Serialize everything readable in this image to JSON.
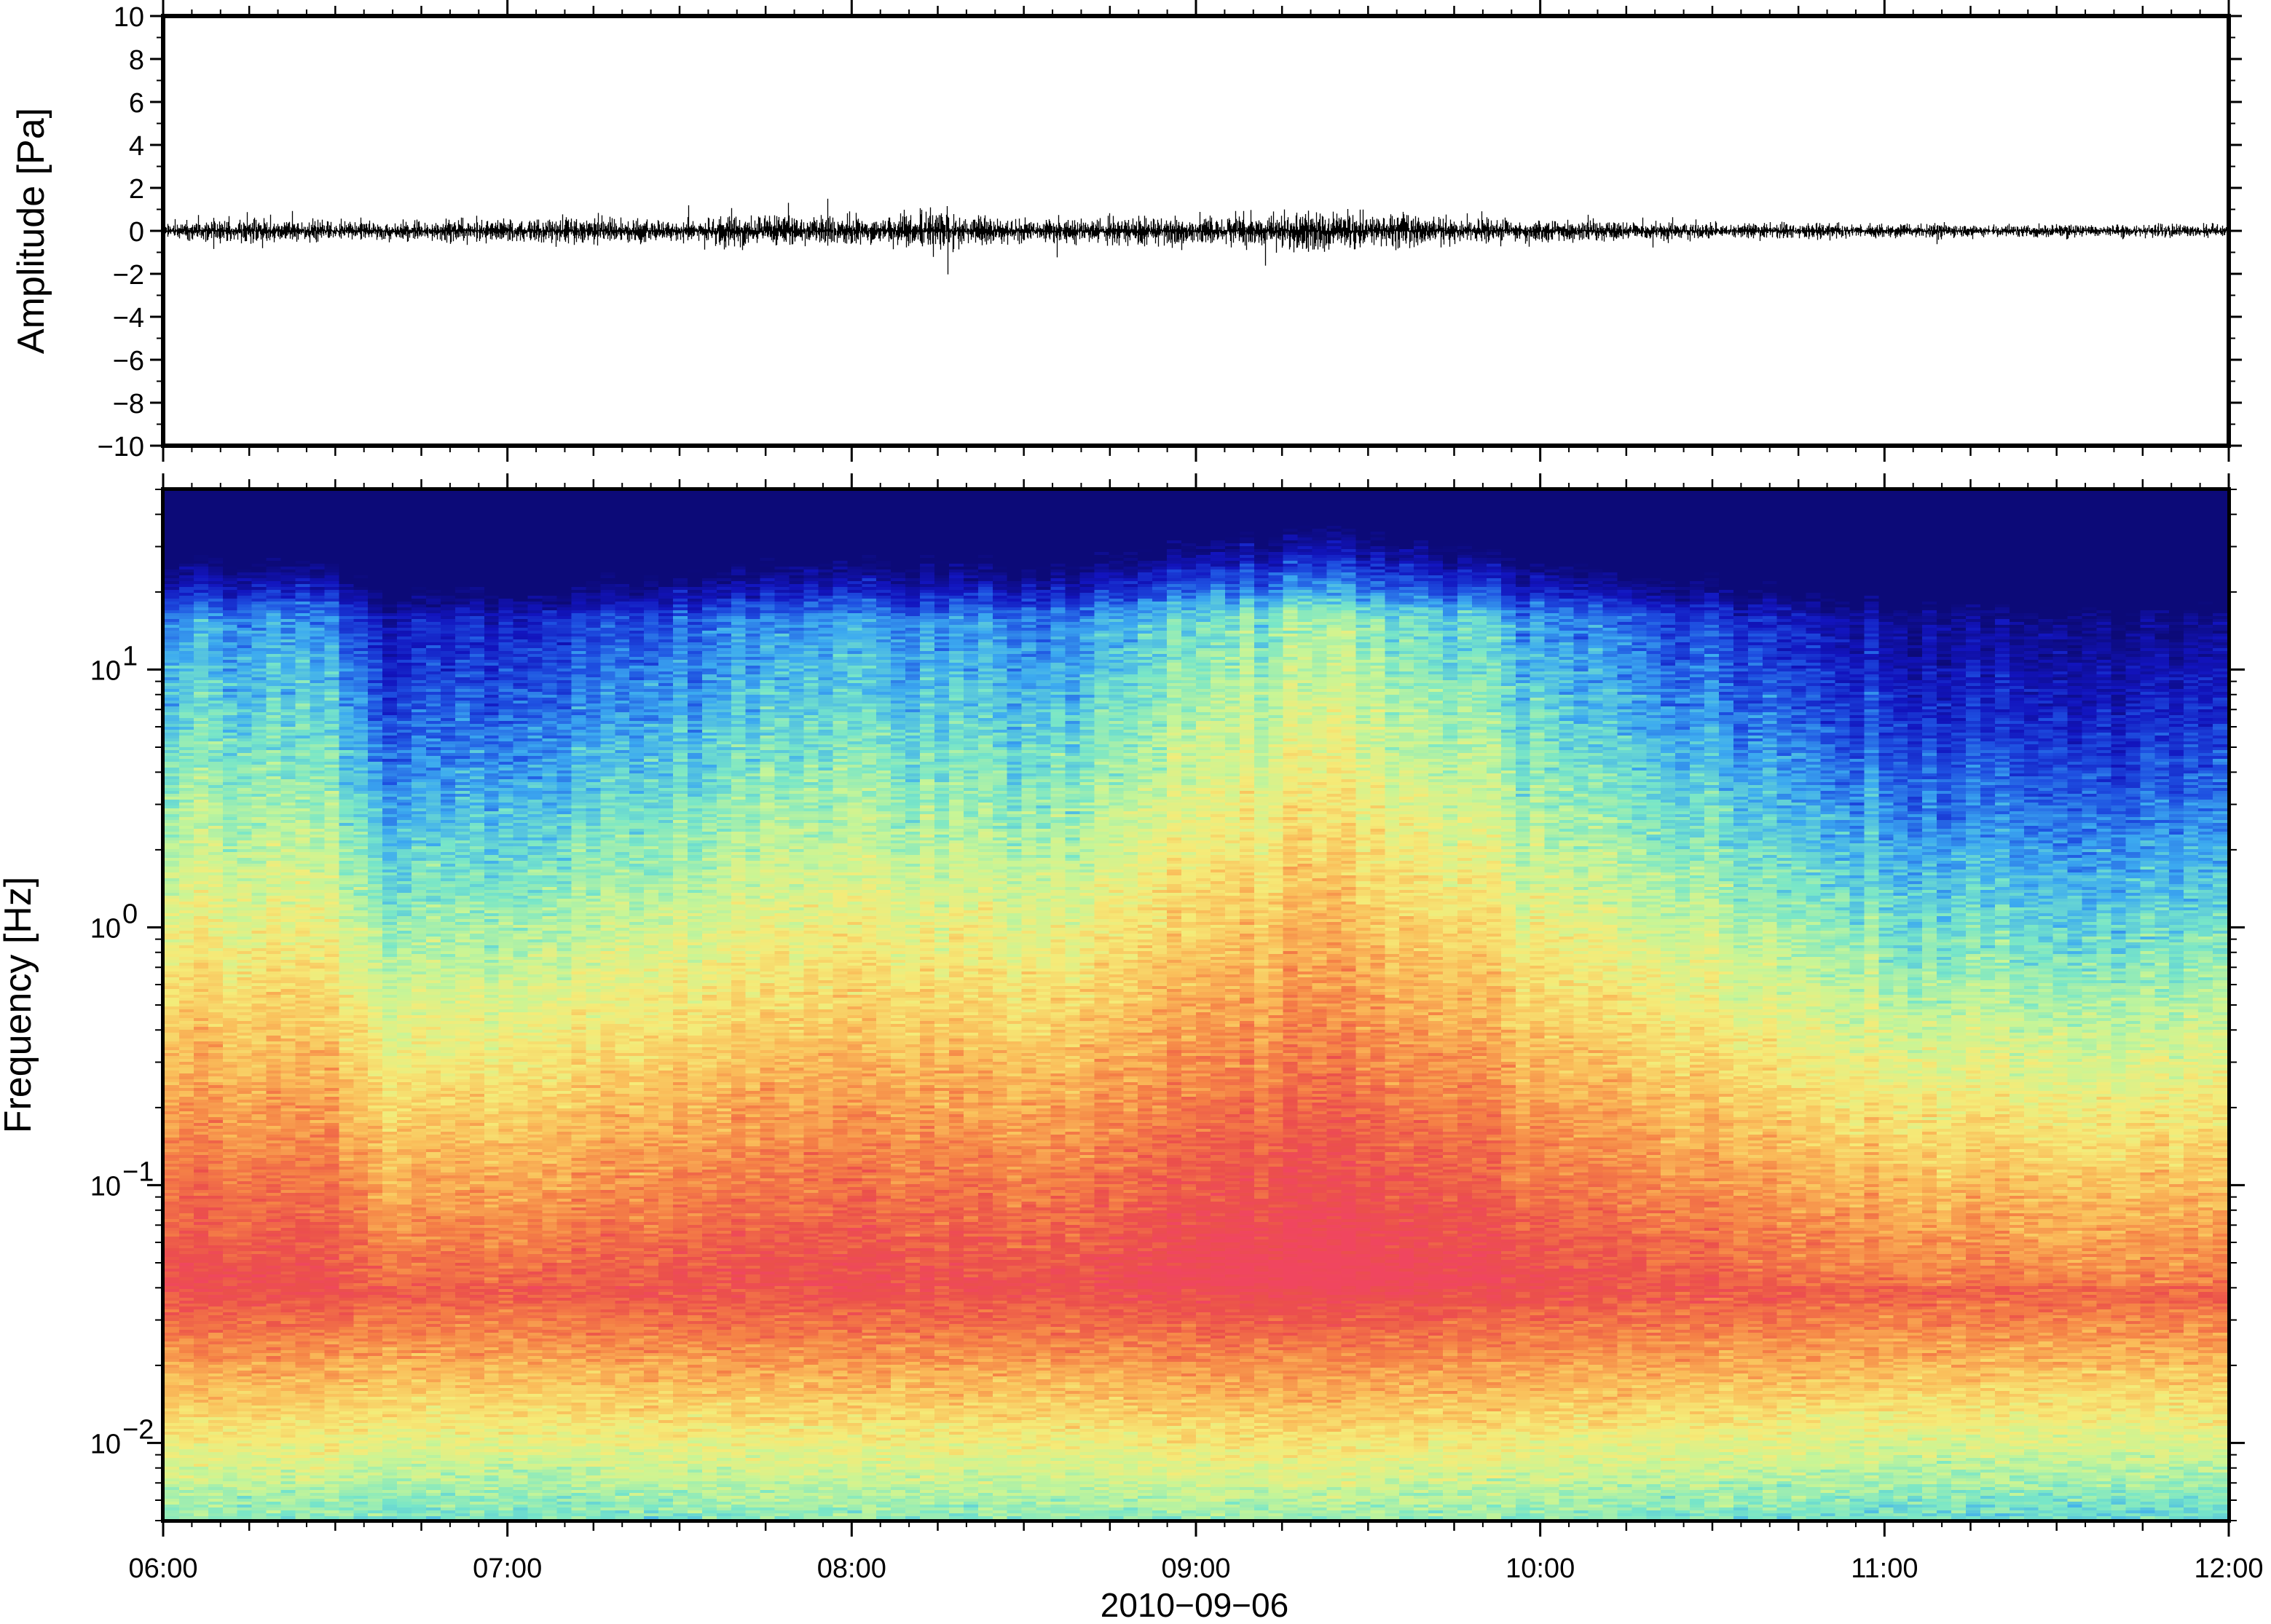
{
  "chart_data": [
    {
      "type": "line",
      "title": "",
      "xlabel": "",
      "ylabel": "Amplitude [Pa]",
      "ylim": [
        -10,
        10
      ],
      "yticks": [
        10,
        8,
        6,
        4,
        2,
        0,
        -2,
        -4,
        -6,
        -8,
        -10
      ],
      "ytick_labels": [
        "10",
        "8",
        "6",
        "4",
        "2",
        "0",
        "−2",
        "−4",
        "−6",
        "−8",
        "−10"
      ],
      "xlim": [
        "06:00",
        "12:00"
      ],
      "grid": false,
      "series": [
        {
          "x_hours": [
            6.0,
            6.25,
            6.5,
            6.75,
            7.0,
            7.25,
            7.5,
            7.65,
            7.9,
            8.1,
            8.25,
            8.5,
            8.75,
            9.0,
            9.25,
            9.35,
            9.5,
            9.75,
            10.0,
            10.25,
            10.5,
            10.75,
            11.0,
            11.25,
            11.5,
            11.75,
            12.0
          ],
          "envelope_pa": [
            0.5,
            0.8,
            0.6,
            0.6,
            0.7,
            0.8,
            0.6,
            1.1,
            0.9,
            1.0,
            1.2,
            0.7,
            0.8,
            0.9,
            1.2,
            1.4,
            1.1,
            0.8,
            0.7,
            0.6,
            0.5,
            0.5,
            0.4,
            0.4,
            0.4,
            0.4,
            0.4
          ],
          "color": "#000000"
        }
      ]
    },
    {
      "type": "heatmap",
      "title": "",
      "xlabel": "2010−09−06",
      "ylabel": "Frequency [Hz]",
      "yscale": "log",
      "ylim": [
        0.005,
        50
      ],
      "yticks": [
        0.01,
        0.1,
        1,
        10
      ],
      "ytick_labels": [
        {
          "base": "10",
          "exp": "−2"
        },
        {
          "base": "10",
          "exp": "−1"
        },
        {
          "base": "10",
          "exp": "0"
        },
        {
          "base": "10",
          "exp": "1"
        }
      ],
      "xlim": [
        "06:00",
        "12:00"
      ],
      "xtick_labels": [
        "06:00",
        "07:00",
        "08:00",
        "09:00",
        "10:00",
        "11:00",
        "12:00"
      ],
      "colormap": "spectral (red = high power, dark blue = low power)",
      "energy_profile": {
        "x_hours": [
          6.0,
          6.5,
          6.6,
          7.0,
          7.5,
          8.0,
          8.5,
          9.0,
          9.4,
          10.0,
          10.5,
          11.0,
          11.5,
          12.0
        ],
        "relative_energy": [
          0.55,
          0.55,
          0.25,
          0.3,
          0.45,
          0.6,
          0.5,
          0.75,
          0.9,
          0.6,
          0.4,
          0.15,
          0.1,
          0.1
        ]
      },
      "grid": false
    }
  ]
}
